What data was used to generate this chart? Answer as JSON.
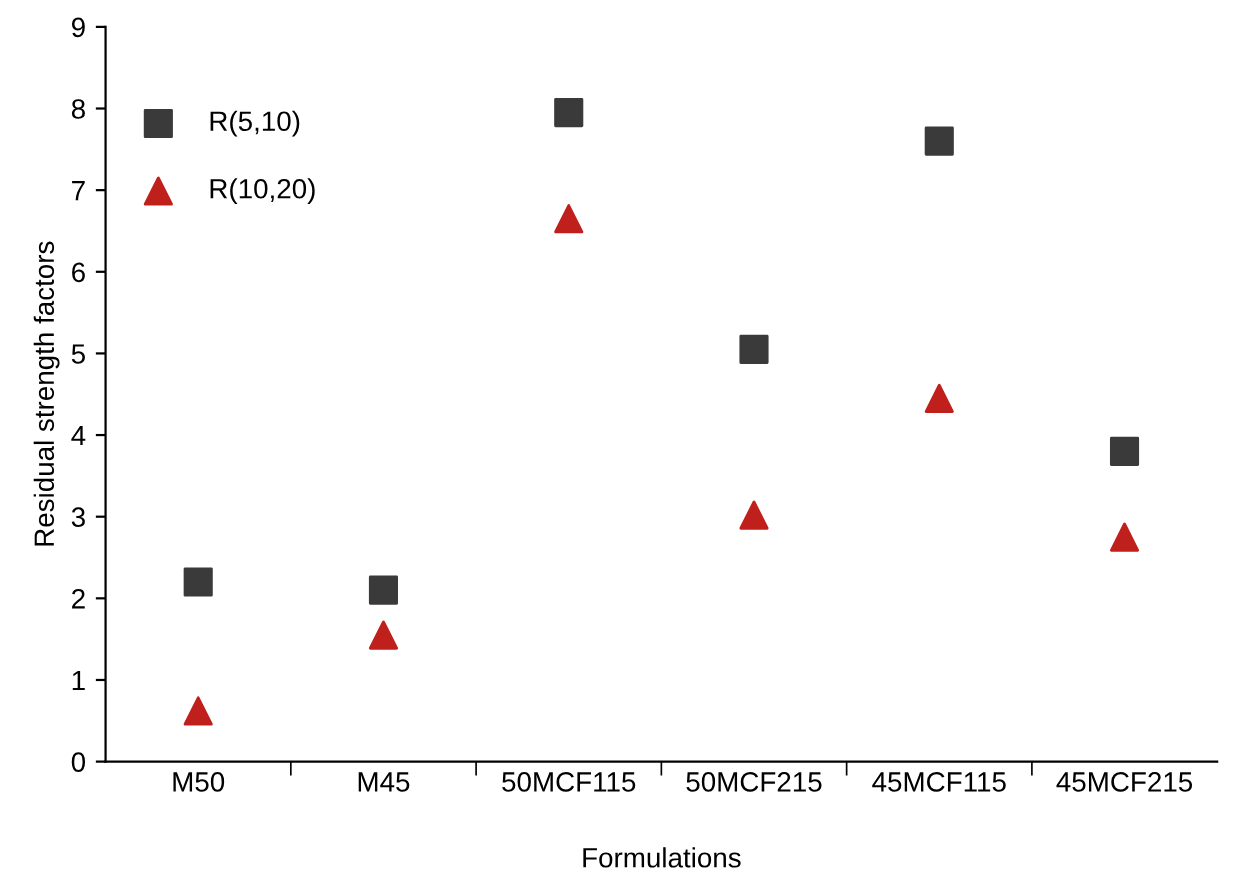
{
  "chart_data": {
    "type": "scatter",
    "xlabel": "Formulations",
    "ylabel": "Residual strength factors",
    "categories": [
      "M50",
      "M45",
      "50MCF115",
      "50MCF215",
      "45MCF115",
      "45MCF215"
    ],
    "series": [
      {
        "name": "R(5,10)",
        "color": "#3a3a3a",
        "marker": "square",
        "values": [
          2.2,
          2.1,
          7.95,
          5.05,
          7.6,
          3.8
        ]
      },
      {
        "name": "R(10,20)",
        "color": "#c0201c",
        "marker": "triangle",
        "values": [
          0.62,
          1.55,
          6.65,
          3.02,
          4.45,
          2.75
        ]
      }
    ],
    "ylim": [
      0,
      9
    ],
    "yticks": [
      0,
      1,
      2,
      3,
      4,
      5,
      6,
      7,
      8,
      9
    ],
    "grid": false,
    "legend": "top left"
  }
}
